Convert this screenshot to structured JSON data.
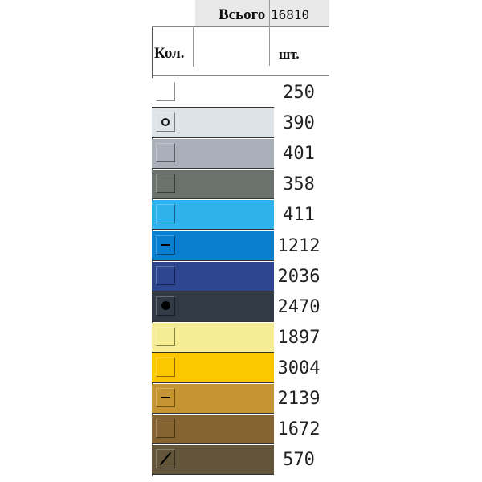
{
  "header": {
    "total_label": "Всього",
    "total_value": "16810",
    "qty_label": "Кол.",
    "unit_label": "шт."
  },
  "rows": [
    {
      "color": "#ffffff",
      "marker": "none",
      "count": "250"
    },
    {
      "color": "#dde3e6",
      "marker": "circle",
      "count": "390"
    },
    {
      "color": "#a9b0b9",
      "marker": "none",
      "count": "401"
    },
    {
      "color": "#6b716c",
      "marker": "none",
      "count": "358"
    },
    {
      "color": "#2fb1ec",
      "marker": "none",
      "count": "411"
    },
    {
      "color": "#0a7fd0",
      "marker": "dash",
      "count": "1212"
    },
    {
      "color": "#2e4590",
      "marker": "none",
      "count": "2036"
    },
    {
      "color": "#313a45",
      "marker": "dot",
      "count": "2470"
    },
    {
      "color": "#f6ec94",
      "marker": "none",
      "count": "1897"
    },
    {
      "color": "#fdc700",
      "marker": "none",
      "count": "3004"
    },
    {
      "color": "#c59433",
      "marker": "dash",
      "count": "2139"
    },
    {
      "color": "#856432",
      "marker": "none",
      "count": "1672"
    },
    {
      "color": "#62553a",
      "marker": "slash",
      "count": "570"
    }
  ]
}
